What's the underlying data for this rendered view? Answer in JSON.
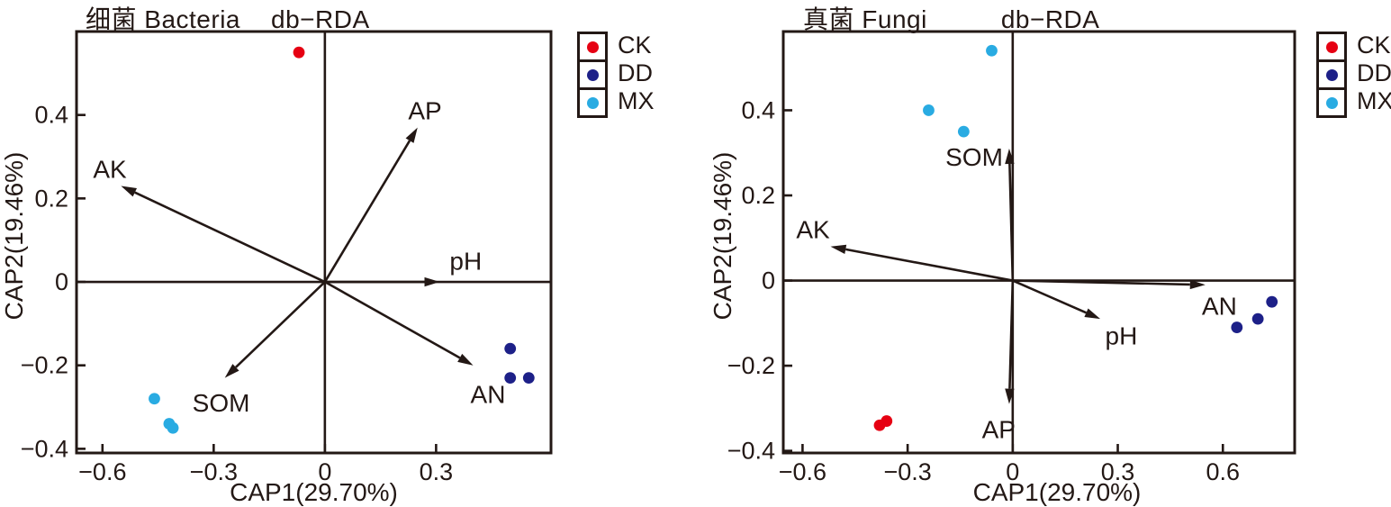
{
  "figure": {
    "background": "#ffffff",
    "line_color": "#231815"
  },
  "legend": {
    "items": [
      {
        "label": "CK",
        "color": "#e60012"
      },
      {
        "label": "DD",
        "color": "#1d2088"
      },
      {
        "label": "MX",
        "color": "#29abe2"
      }
    ]
  },
  "chart_data": [
    {
      "type": "scatter",
      "title": "细菌 Bacteria  db−RDA",
      "title_group": "细菌 Bacteria",
      "title_method": "db−RDA",
      "xlabel": "CAP1(29.70%)",
      "ylabel": "CAP2(19.46%)",
      "xlim": [
        -0.67,
        0.61
      ],
      "ylim": [
        -0.41,
        0.6
      ],
      "xticks": [
        -0.6,
        -0.3,
        0,
        0.3
      ],
      "xtick_labels": [
        "−0.6",
        "−0.3",
        "0",
        "0.3"
      ],
      "yticks": [
        -0.4,
        -0.2,
        0,
        0.2,
        0.4
      ],
      "ytick_labels": [
        "−0.4",
        "−0.2",
        "0",
        "0.2",
        "0.4"
      ],
      "grid": false,
      "legend_position": "outside-top-right",
      "series": [
        {
          "name": "CK",
          "color": "#e60012",
          "points": [
            [
              -0.07,
              0.55
            ]
          ]
        },
        {
          "name": "DD",
          "color": "#1d2088",
          "points": [
            [
              0.5,
              -0.16
            ],
            [
              0.5,
              -0.23
            ],
            [
              0.55,
              -0.23
            ]
          ]
        },
        {
          "name": "MX",
          "color": "#29abe2",
          "points": [
            [
              -0.46,
              -0.28
            ],
            [
              -0.42,
              -0.34
            ],
            [
              -0.41,
              -0.35
            ]
          ]
        }
      ],
      "env_arrows": [
        {
          "name": "AP",
          "tip": [
            0.25,
            0.37
          ],
          "label_at": [
            0.27,
            0.41
          ]
        },
        {
          "name": "AK",
          "tip": [
            -0.55,
            0.23
          ],
          "label_at": [
            -0.58,
            0.27
          ]
        },
        {
          "name": "pH",
          "tip": [
            0.31,
            0.0
          ],
          "label_at": [
            0.38,
            0.05
          ]
        },
        {
          "name": "SOM",
          "tip": [
            -0.27,
            -0.23
          ],
          "label_at": [
            -0.28,
            -0.29
          ]
        },
        {
          "name": "AN",
          "tip": [
            0.4,
            -0.2
          ],
          "label_at": [
            0.44,
            -0.27
          ]
        }
      ]
    },
    {
      "type": "scatter",
      "title": "真菌 Fungi  db−RDA",
      "title_group": "真菌 Fungi",
      "title_method": "db−RDA",
      "xlabel": "CAP1(29.70%)",
      "ylabel": "CAP2(19.46%)",
      "xlim": [
        -0.655,
        0.805
      ],
      "ylim": [
        -0.405,
        0.585
      ],
      "xticks": [
        -0.6,
        -0.3,
        0,
        0.3,
        0.6
      ],
      "xtick_labels": [
        "−0.6",
        "−0.3",
        "0",
        "0.3",
        "0.6"
      ],
      "yticks": [
        -0.4,
        -0.2,
        0,
        0.2,
        0.4
      ],
      "ytick_labels": [
        "−0.4",
        "−0.2",
        "0",
        "0.2",
        "0.4"
      ],
      "grid": false,
      "legend_position": "outside-top-right",
      "series": [
        {
          "name": "CK",
          "color": "#e60012",
          "points": [
            [
              -0.38,
              -0.34
            ],
            [
              -0.36,
              -0.33
            ]
          ]
        },
        {
          "name": "DD",
          "color": "#1d2088",
          "points": [
            [
              0.64,
              -0.11
            ],
            [
              0.7,
              -0.09
            ],
            [
              0.74,
              -0.05
            ]
          ]
        },
        {
          "name": "MX",
          "color": "#29abe2",
          "points": [
            [
              -0.06,
              0.54
            ],
            [
              -0.24,
              0.4
            ],
            [
              -0.14,
              0.35
            ]
          ]
        }
      ],
      "env_arrows": [
        {
          "name": "SOM",
          "tip": [
            -0.01,
            0.31
          ],
          "label_at": [
            -0.11,
            0.29
          ]
        },
        {
          "name": "AK",
          "tip": [
            -0.52,
            0.08
          ],
          "label_at": [
            -0.57,
            0.12
          ]
        },
        {
          "name": "AN",
          "tip": [
            0.55,
            -0.01
          ],
          "label_at": [
            0.59,
            -0.06
          ]
        },
        {
          "name": "pH",
          "tip": [
            0.25,
            -0.09
          ],
          "label_at": [
            0.31,
            -0.13
          ]
        },
        {
          "name": "AP",
          "tip": [
            -0.01,
            -0.29
          ],
          "label_at": [
            -0.04,
            -0.35
          ]
        }
      ]
    }
  ]
}
